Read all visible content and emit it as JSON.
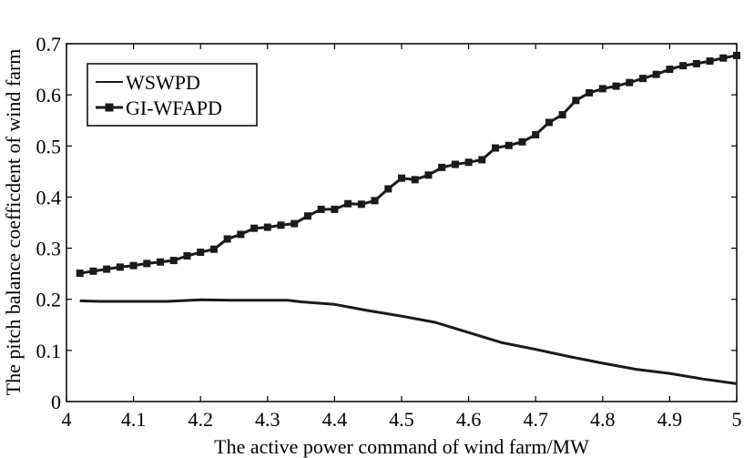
{
  "chart_data": {
    "type": "line",
    "xlabel": "The active power command of wind farm/MW",
    "ylabel": "The pitch balance coefficdent of wind farm",
    "xlim": [
      4,
      5
    ],
    "ylim": [
      0,
      0.7
    ],
    "xticks": [
      4,
      4.1,
      4.2,
      4.3,
      4.4,
      4.5,
      4.6,
      4.7,
      4.8,
      4.9,
      5
    ],
    "xtick_labels": [
      "4",
      "4.1",
      "4.2",
      "4.3",
      "4.4",
      "4.5",
      "4.6",
      "4.7",
      "4.8",
      "4.9",
      "5"
    ],
    "yticks": [
      0,
      0.1,
      0.2,
      0.3,
      0.4,
      0.5,
      0.6,
      0.7
    ],
    "ytick_labels": [
      "0",
      "0.1",
      "0.2",
      "0.3",
      "0.4",
      "0.5",
      "0.6",
      "0.7"
    ],
    "grid": false,
    "legend_position": "top-left",
    "series": [
      {
        "name": "WSWPD",
        "color": "#1a1a1a",
        "marker": "none",
        "x": [
          4.02,
          4.05,
          4.1,
          4.15,
          4.2,
          4.25,
          4.3,
          4.33,
          4.35,
          4.4,
          4.45,
          4.5,
          4.55,
          4.6,
          4.65,
          4.7,
          4.75,
          4.8,
          4.85,
          4.9,
          4.95,
          5.0
        ],
        "y": [
          0.197,
          0.196,
          0.196,
          0.196,
          0.199,
          0.198,
          0.198,
          0.198,
          0.195,
          0.19,
          0.178,
          0.167,
          0.155,
          0.135,
          0.115,
          0.102,
          0.088,
          0.075,
          0.063,
          0.055,
          0.044,
          0.035
        ]
      },
      {
        "name": "GI-WFAPD",
        "color": "#1a1a1a",
        "marker": "square",
        "x": [
          4.02,
          4.04,
          4.06,
          4.08,
          4.1,
          4.12,
          4.14,
          4.16,
          4.18,
          4.2,
          4.22,
          4.24,
          4.26,
          4.28,
          4.3,
          4.32,
          4.34,
          4.36,
          4.38,
          4.4,
          4.42,
          4.44,
          4.46,
          4.48,
          4.5,
          4.52,
          4.54,
          4.56,
          4.58,
          4.6,
          4.62,
          4.64,
          4.66,
          4.68,
          4.7,
          4.72,
          4.74,
          4.76,
          4.78,
          4.8,
          4.82,
          4.84,
          4.86,
          4.88,
          4.9,
          4.92,
          4.94,
          4.96,
          4.98,
          5.0
        ],
        "y": [
          0.251,
          0.255,
          0.259,
          0.263,
          0.266,
          0.27,
          0.273,
          0.276,
          0.285,
          0.292,
          0.298,
          0.318,
          0.327,
          0.339,
          0.341,
          0.345,
          0.348,
          0.363,
          0.376,
          0.376,
          0.387,
          0.386,
          0.393,
          0.416,
          0.437,
          0.434,
          0.443,
          0.458,
          0.464,
          0.468,
          0.473,
          0.496,
          0.501,
          0.508,
          0.522,
          0.546,
          0.561,
          0.589,
          0.604,
          0.612,
          0.617,
          0.624,
          0.632,
          0.64,
          0.65,
          0.657,
          0.661,
          0.666,
          0.672,
          0.677
        ]
      }
    ]
  }
}
